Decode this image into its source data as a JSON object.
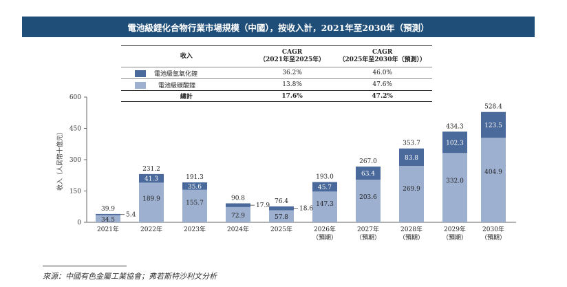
{
  "title": "電池級鋰化合物行業市場規模（中國），按收入計，2021年至2030年（預測）",
  "table": {
    "header": [
      "收入",
      "CAGR\n（2021年至2025年）",
      "CAGR\n（2025年至2030年（預測））"
    ],
    "header_col1": "收入",
    "header_col2_line1": "CAGR",
    "header_col2_line2": "（2021年至2025年）",
    "header_col3_line1": "CAGR",
    "header_col3_line2": "（2025年至2030年（預測））",
    "rows": [
      {
        "label": "電池級氫氧化鋰",
        "color": "#4a6a9b",
        "cagr_2021_2025": "36.2%",
        "cagr_2025_2030": "46.0%"
      },
      {
        "label": "電池級碳酸鋰",
        "color": "#9db0d0",
        "cagr_2021_2025": "13.8%",
        "cagr_2025_2030": "47.6%"
      }
    ],
    "total": {
      "label": "總計",
      "cagr_2021_2025": "17.6%",
      "cagr_2025_2030": "47.2%"
    }
  },
  "chart_data": {
    "type": "bar",
    "stacked": true,
    "title": "電池級鋰化合物行業市場規模（中國），按收入計，2021年至2030年（預測）",
    "ylabel": "收入（人民幣十億元）",
    "xlabel": "",
    "ylim": [
      0,
      600
    ],
    "yticks": [
      0,
      150,
      300,
      450,
      600
    ],
    "grid": false,
    "categories": [
      "2021年",
      "2022年",
      "2023年",
      "2024年",
      "2025年",
      "2026年",
      "2027年",
      "2028年",
      "2029年",
      "2030年"
    ],
    "category_sublabels": [
      "",
      "",
      "",
      "",
      "",
      "（預期）",
      "（預期）",
      "（預期）",
      "（預期）",
      "（預期）"
    ],
    "series": [
      {
        "name": "電池級碳酸鋰",
        "color": "#9db0d0",
        "values": [
          34.5,
          189.9,
          155.7,
          72.9,
          57.8,
          147.3,
          203.6,
          269.9,
          332.0,
          404.9
        ]
      },
      {
        "name": "電池級氫氧化鋰",
        "color": "#4a6a9b",
        "values": [
          5.4,
          41.3,
          35.6,
          17.9,
          18.6,
          45.7,
          63.4,
          83.8,
          102.3,
          123.5
        ]
      }
    ],
    "totals": [
      39.9,
      231.2,
      191.3,
      90.8,
      76.4,
      193.0,
      267.0,
      353.7,
      434.3,
      528.4
    ],
    "value_labels": {
      "bottom": [
        "34.5",
        "189.9",
        "155.7",
        "72.9",
        "57.8",
        "147.3",
        "203.6",
        "269.9",
        "332.0",
        "404.9"
      ],
      "top": [
        "5.4",
        "41.3",
        "35.6",
        "17.9",
        "18.6",
        "45.7",
        "63.4",
        "83.8",
        "102.3",
        "123.5"
      ],
      "totals": [
        "39.9",
        "231.2",
        "191.3",
        "90.8",
        "76.4",
        "193.0",
        "267.0",
        "353.7",
        "434.3",
        "528.4"
      ]
    },
    "legend": "table-above"
  },
  "source": "來源：中國有色金屬工業協會；弗若斯特沙利文分析"
}
